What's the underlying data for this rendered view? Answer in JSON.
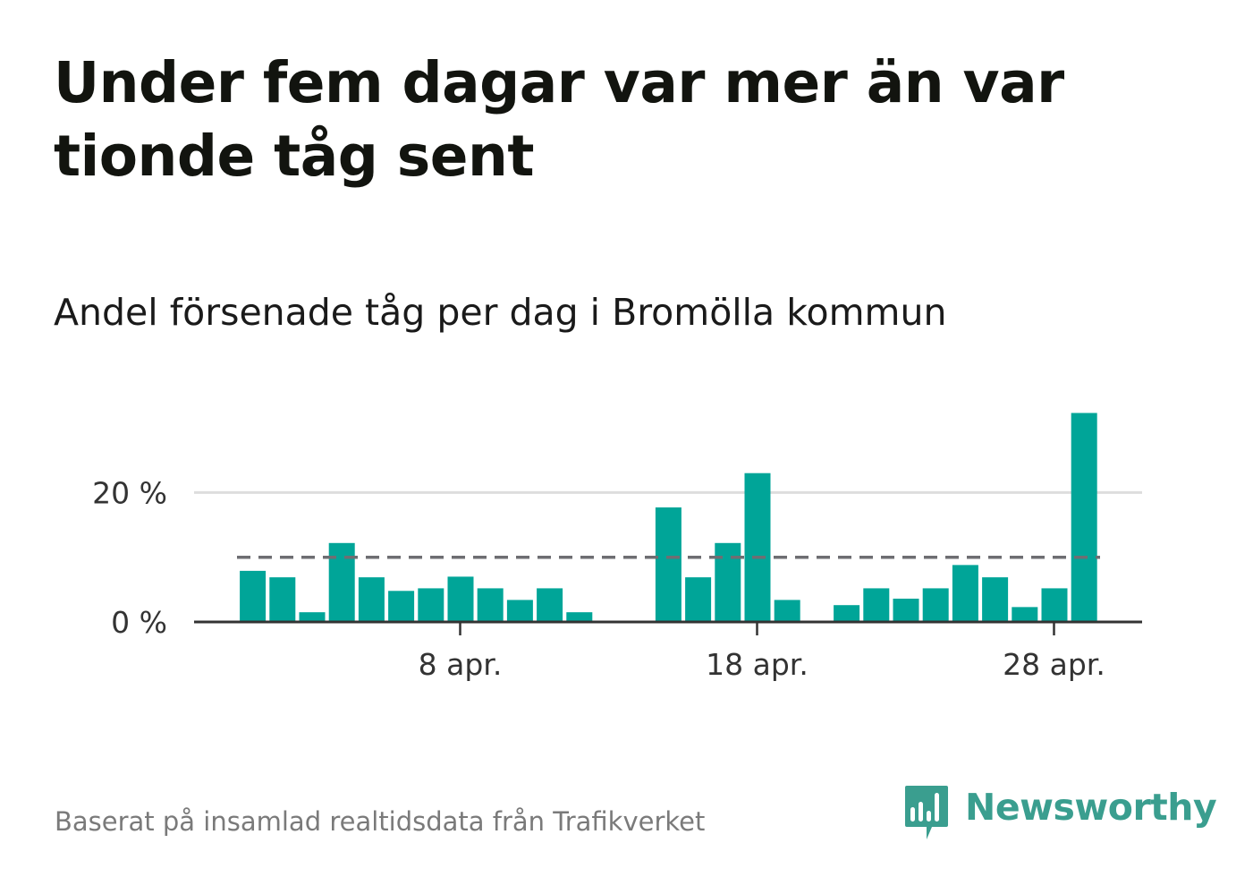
{
  "title": "Under fem dagar var mer än var tionde tåg sent",
  "subtitle": "Andel försenade tåg per dag i Bromölla kommun",
  "source": "Baserat på insamlad realtidsdata från Trafikverket",
  "brand": {
    "name": "Newsworthy"
  },
  "colors": {
    "bar": "#00a598",
    "reference_line": "#6e6e72",
    "grid": "#dddddd",
    "axis": "#333333",
    "brand": "#3a9e8f"
  },
  "chart_data": {
    "type": "bar",
    "x_unit": "day in April",
    "x": [
      1,
      2,
      3,
      4,
      5,
      6,
      7,
      8,
      9,
      10,
      11,
      12,
      13,
      14,
      15,
      16,
      17,
      18,
      19,
      20,
      21,
      22,
      23,
      24,
      25,
      26,
      27,
      28,
      29
    ],
    "values": [
      7.9,
      6.9,
      1.5,
      12.2,
      6.9,
      4.8,
      5.2,
      7.0,
      5.2,
      3.4,
      5.2,
      1.5,
      null,
      null,
      17.7,
      6.9,
      12.2,
      23.0,
      3.4,
      null,
      2.6,
      5.2,
      3.6,
      5.2,
      8.8,
      6.9,
      2.3,
      5.2,
      32.3
    ],
    "reference_value": 10,
    "reference_style": "dashed",
    "y_unit": "%",
    "ylim": [
      0,
      33
    ],
    "y_ticks": [
      {
        "value": 0,
        "label": "0 %"
      },
      {
        "value": 20,
        "label": "20 %"
      }
    ],
    "x_ticks": [
      {
        "value": 8,
        "label": "8 apr."
      },
      {
        "value": 18,
        "label": "18 apr."
      },
      {
        "value": 28,
        "label": "28 apr."
      }
    ],
    "grid": true,
    "legend": "none"
  }
}
